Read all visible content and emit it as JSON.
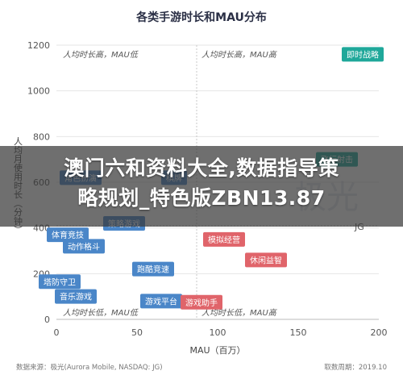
{
  "chart_data": {
    "type": "scatter",
    "title": "各类手游时长和MAU分布",
    "xlabel": "MAU（百万）",
    "ylabel": "人均月使用时长（分钟）",
    "xlim": [
      0,
      200
    ],
    "ylim": [
      0,
      1200
    ],
    "xticks": [
      0,
      50,
      100,
      150,
      200
    ],
    "yticks": [
      0,
      200,
      400,
      600,
      800,
      1000,
      1200
    ],
    "divider_x": 87,
    "divider_y": 410,
    "quadrant_labels": {
      "top_left": "人均时长高，MAU低",
      "top_right": "人均时长高，MAU高",
      "bottom_left": "人均时长低，MAU低",
      "bottom_right": "人均时长低，MAU高"
    },
    "points": [
      {
        "label": "即时战略",
        "x": 190,
        "y": 1160,
        "color": "#1fa89a"
      },
      {
        "label": "飞行射击",
        "x": 174,
        "y": 700,
        "color": "#1fa89a"
      },
      {
        "label": "角色扮演",
        "x": 15,
        "y": 620,
        "color": "#4a86c8"
      },
      {
        "label": "棋牌",
        "x": 73,
        "y": 620,
        "color": "#4a86c8"
      },
      {
        "label": "策略游戏",
        "x": 42,
        "y": 420,
        "color": "#4a86c8"
      },
      {
        "label": "体育竞技",
        "x": 7,
        "y": 370,
        "color": "#4a86c8"
      },
      {
        "label": "动作格斗",
        "x": 17,
        "y": 320,
        "color": "#4a86c8"
      },
      {
        "label": "模拟经营",
        "x": 104,
        "y": 350,
        "color": "#e0646a"
      },
      {
        "label": "休闲益智",
        "x": 130,
        "y": 260,
        "color": "#e0646a"
      },
      {
        "label": "跑酷竞速",
        "x": 60,
        "y": 220,
        "color": "#4a86c8"
      },
      {
        "label": "塔防守卫",
        "x": 2,
        "y": 165,
        "color": "#4a86c8"
      },
      {
        "label": "音乐游戏",
        "x": 12,
        "y": 100,
        "color": "#4a86c8"
      },
      {
        "label": "游戏平台",
        "x": 65,
        "y": 80,
        "color": "#4a86c8"
      },
      {
        "label": "游戏助手",
        "x": 90,
        "y": 75,
        "color": "#e0646a"
      }
    ]
  },
  "source_left": "数据来源：极光(Aurora Mobile, NASDAQ: JG)",
  "source_right": "取数周期：2019.10",
  "watermark": "极光",
  "watermark_tag": "JG",
  "overlay": {
    "line1": "澳门六和资料大全,数据指导策",
    "line2": "略规划_特色版ZBN13.87"
  }
}
